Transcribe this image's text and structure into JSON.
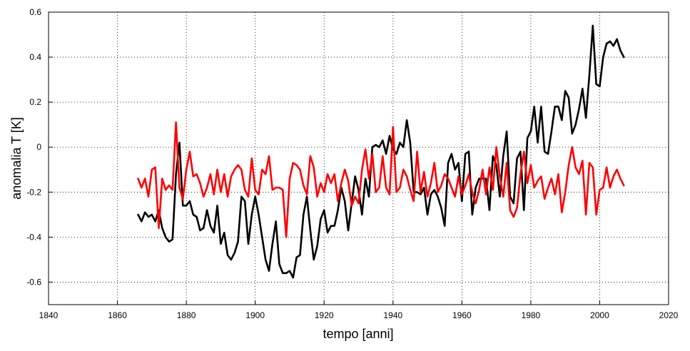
{
  "chart_data": {
    "type": "line",
    "title": "",
    "xlabel": "tempo [anni]",
    "ylabel": "anomalia T [K]",
    "xlim": [
      1840,
      2020
    ],
    "ylim": [
      -0.7,
      0.6
    ],
    "xticks": [
      1840,
      1860,
      1880,
      1900,
      1920,
      1940,
      1960,
      1980,
      2000,
      2020
    ],
    "yticks": [
      -0.6,
      -0.4,
      -0.2,
      0,
      0.2,
      0.4,
      0.6
    ],
    "ytick_labels": [
      "-0.6",
      "-0.4",
      "-0.2",
      "0",
      "0.2",
      "0.4",
      "0.6"
    ],
    "grid": true,
    "grid_style": "dotted",
    "series": [
      {
        "color": "#000000",
        "x": [
          1866,
          1867,
          1868,
          1869,
          1870,
          1871,
          1872,
          1873,
          1874,
          1875,
          1876,
          1877,
          1878,
          1879,
          1880,
          1881,
          1882,
          1883,
          1884,
          1885,
          1886,
          1887,
          1888,
          1889,
          1890,
          1891,
          1892,
          1893,
          1894,
          1895,
          1896,
          1897,
          1898,
          1899,
          1900,
          1901,
          1902,
          1903,
          1904,
          1905,
          1906,
          1907,
          1908,
          1909,
          1910,
          1911,
          1912,
          1913,
          1914,
          1915,
          1916,
          1917,
          1918,
          1919,
          1920,
          1921,
          1922,
          1923,
          1924,
          1925,
          1926,
          1927,
          1928,
          1929,
          1930,
          1931,
          1932,
          1933,
          1934,
          1935,
          1936,
          1937,
          1938,
          1939,
          1940,
          1941,
          1942,
          1943,
          1944,
          1945,
          1946,
          1947,
          1948,
          1949,
          1950,
          1951,
          1952,
          1953,
          1954,
          1955,
          1956,
          1957,
          1958,
          1959,
          1960,
          1961,
          1962,
          1963,
          1964,
          1965,
          1966,
          1967,
          1968,
          1969,
          1970,
          1971,
          1972,
          1973,
          1974,
          1975,
          1976,
          1977,
          1978,
          1979,
          1980,
          1981,
          1982,
          1983,
          1984,
          1985,
          1986,
          1987,
          1988,
          1989,
          1990,
          1991,
          1992,
          1993,
          1994,
          1995,
          1996,
          1997,
          1998,
          1999,
          2000,
          2001,
          2002,
          2003,
          2004,
          2005,
          2006,
          2007
        ],
        "values": [
          -0.3,
          -0.33,
          -0.29,
          -0.31,
          -0.3,
          -0.33,
          -0.28,
          -0.36,
          -0.4,
          -0.42,
          -0.41,
          -0.12,
          0.02,
          -0.26,
          -0.26,
          -0.24,
          -0.3,
          -0.31,
          -0.37,
          -0.36,
          -0.28,
          -0.35,
          -0.38,
          -0.26,
          -0.43,
          -0.38,
          -0.48,
          -0.5,
          -0.47,
          -0.42,
          -0.22,
          -0.24,
          -0.43,
          -0.3,
          -0.22,
          -0.3,
          -0.4,
          -0.5,
          -0.55,
          -0.43,
          -0.33,
          -0.52,
          -0.56,
          -0.56,
          -0.55,
          -0.58,
          -0.49,
          -0.48,
          -0.3,
          -0.22,
          -0.37,
          -0.5,
          -0.44,
          -0.32,
          -0.28,
          -0.38,
          -0.35,
          -0.35,
          -0.28,
          -0.18,
          -0.24,
          -0.37,
          -0.25,
          -0.13,
          -0.19,
          -0.3,
          -0.14,
          -0.22,
          0.0,
          0.01,
          0.0,
          0.03,
          -0.03,
          0.05,
          -0.01,
          -0.03,
          0.02,
          0.0,
          0.12,
          0.02,
          -0.2,
          -0.2,
          -0.21,
          -0.18,
          -0.3,
          -0.21,
          -0.19,
          -0.22,
          -0.27,
          -0.35,
          -0.07,
          -0.03,
          -0.1,
          -0.07,
          -0.24,
          -0.03,
          -0.02,
          -0.3,
          -0.18,
          -0.14,
          -0.14,
          -0.14,
          -0.28,
          -0.04,
          -0.08,
          -0.22,
          -0.04,
          0.07,
          -0.22,
          -0.25,
          -0.05,
          -0.02,
          -0.28,
          0.04,
          0.07,
          0.18,
          0.02,
          0.18,
          -0.02,
          -0.03,
          0.07,
          0.18,
          0.18,
          0.12,
          0.25,
          0.22,
          0.06,
          0.1,
          0.17,
          0.26,
          0.13,
          0.32,
          0.54,
          0.28,
          0.27,
          0.4,
          0.46,
          0.47,
          0.45,
          0.48,
          0.43,
          0.4
        ]
      },
      {
        "color": "#ff0000",
        "x": [
          1866,
          1867,
          1868,
          1869,
          1870,
          1871,
          1872,
          1873,
          1874,
          1875,
          1876,
          1877,
          1878,
          1879,
          1880,
          1881,
          1882,
          1883,
          1884,
          1885,
          1886,
          1887,
          1888,
          1889,
          1890,
          1891,
          1892,
          1893,
          1894,
          1895,
          1896,
          1897,
          1898,
          1899,
          1900,
          1901,
          1902,
          1903,
          1904,
          1905,
          1906,
          1907,
          1908,
          1909,
          1910,
          1911,
          1912,
          1913,
          1914,
          1915,
          1916,
          1917,
          1918,
          1919,
          1920,
          1921,
          1922,
          1923,
          1924,
          1925,
          1926,
          1927,
          1928,
          1929,
          1930,
          1931,
          1932,
          1933,
          1934,
          1935,
          1936,
          1937,
          1938,
          1939,
          1940,
          1941,
          1942,
          1943,
          1944,
          1945,
          1946,
          1947,
          1948,
          1949,
          1950,
          1951,
          1952,
          1953,
          1954,
          1955,
          1956,
          1957,
          1958,
          1959,
          1960,
          1961,
          1962,
          1963,
          1964,
          1965,
          1966,
          1967,
          1968,
          1969,
          1970,
          1971,
          1972,
          1973,
          1974,
          1975,
          1976,
          1977,
          1978,
          1979,
          1980,
          1981,
          1982,
          1983,
          1984,
          1985,
          1986,
          1987,
          1988,
          1989,
          1990,
          1991,
          1992,
          1993,
          1994,
          1995,
          1996,
          1997,
          1998,
          1999,
          2000,
          2001,
          2002,
          2003,
          2004,
          2005,
          2006,
          2007
        ],
        "values": [
          -0.14,
          -0.18,
          -0.14,
          -0.22,
          -0.1,
          -0.09,
          -0.36,
          -0.14,
          -0.19,
          -0.17,
          -0.19,
          0.11,
          -0.18,
          -0.23,
          -0.1,
          -0.02,
          -0.13,
          -0.12,
          -0.16,
          -0.22,
          -0.18,
          -0.12,
          -0.21,
          -0.1,
          -0.2,
          -0.12,
          -0.22,
          -0.13,
          -0.1,
          -0.08,
          -0.1,
          -0.19,
          -0.22,
          -0.05,
          -0.19,
          -0.21,
          -0.1,
          -0.12,
          -0.04,
          -0.19,
          -0.18,
          -0.18,
          -0.19,
          -0.4,
          -0.14,
          -0.07,
          -0.08,
          -0.1,
          -0.17,
          -0.21,
          -0.04,
          -0.09,
          -0.22,
          -0.16,
          -0.2,
          -0.12,
          -0.16,
          -0.12,
          -0.24,
          -0.16,
          -0.1,
          -0.15,
          -0.26,
          -0.22,
          -0.25,
          -0.1,
          -0.01,
          -0.14,
          -0.03,
          -0.2,
          -0.18,
          -0.04,
          -0.18,
          -0.21,
          0.09,
          -0.2,
          -0.18,
          -0.1,
          -0.13,
          -0.19,
          -0.24,
          -0.02,
          -0.2,
          -0.11,
          -0.22,
          -0.16,
          -0.07,
          -0.2,
          -0.17,
          -0.12,
          -0.14,
          -0.18,
          -0.22,
          -0.13,
          -0.21,
          -0.17,
          -0.12,
          -0.2,
          -0.25,
          -0.19,
          -0.1,
          -0.21,
          -0.09,
          -0.19,
          0.0,
          -0.13,
          -0.22,
          -0.07,
          -0.28,
          -0.31,
          -0.27,
          -0.12,
          -0.02,
          -0.16,
          -0.08,
          -0.18,
          -0.15,
          -0.13,
          -0.23,
          -0.18,
          -0.14,
          -0.21,
          -0.12,
          -0.29,
          -0.2,
          -0.08,
          0.0,
          -0.09,
          -0.12,
          -0.06,
          -0.3,
          -0.07,
          -0.09,
          -0.3,
          -0.19,
          -0.18,
          -0.09,
          -0.18,
          -0.13,
          -0.1,
          -0.14,
          -0.17
        ]
      }
    ]
  }
}
